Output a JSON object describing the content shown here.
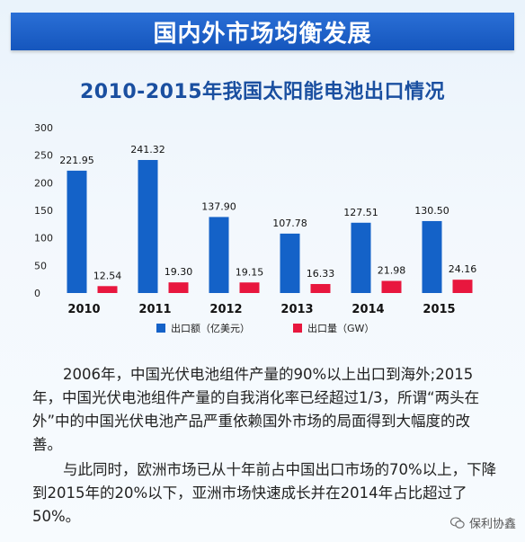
{
  "banner": {
    "title": "国内外市场均衡发展"
  },
  "chart_data": {
    "type": "bar",
    "title": "2010-2015年我国太阳能电池出口情况",
    "categories": [
      "2010",
      "2011",
      "2012",
      "2013",
      "2014",
      "2015"
    ],
    "series": [
      {
        "name": "出口额（亿美元）",
        "color": "#1462c8",
        "values": [
          221.95,
          241.32,
          137.9,
          107.78,
          127.51,
          130.5
        ],
        "labels": [
          "221.95",
          "241.32",
          "137.90",
          "107.78",
          "127.51",
          "130.50"
        ]
      },
      {
        "name": "出口量（GW）",
        "color": "#e8173e",
        "values": [
          12.54,
          19.3,
          19.15,
          16.33,
          21.98,
          24.16
        ],
        "labels": [
          "12.54",
          "19.30",
          "19.15",
          "16.33",
          "21.98",
          "24.16"
        ]
      }
    ],
    "yticks": [
      "300",
      "250",
      "200",
      "150",
      "100",
      "50",
      "0"
    ],
    "ylim": [
      0,
      300
    ],
    "grid": false,
    "legend_position": "bottom"
  },
  "paragraphs": [
    "2006年，中国光伏电池组件产量的90%以上出口到海外;2015年，中国光伏电池组件产量的自我消化率已经超过1/3，所谓“两头在外”中的中国光伏电池产品严重依赖国外市场的局面得到大幅度的改善。",
    "与此同时，欧洲市场已从十年前占中国出口市场的70%以上，下降到2015年的20%以下，亚洲市场快速成长并在2014年占比超过了50%。"
  ],
  "watermark": {
    "text": "保利协鑫",
    "icon": "wechat-icon"
  }
}
